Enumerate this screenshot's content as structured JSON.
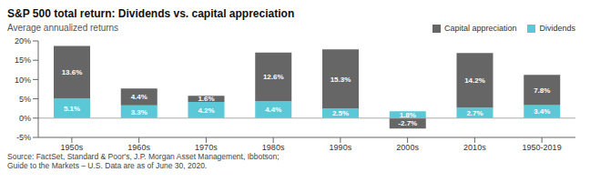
{
  "chart_data": {
    "type": "bar",
    "title": "S&P 500 total return: Dividends vs. capital appreciation",
    "subtitle": "Average annualized returns",
    "source": "Source: FactSet, Standard & Poor's, J.P. Morgan Asset Management, Ibbotson;\nGuide to the Markets – U.S. Data are as of June 30, 2020.",
    "categories": [
      "1950s",
      "1960s",
      "1970s",
      "1980s",
      "1990s",
      "2000s",
      "2010s",
      "1950-2019"
    ],
    "series": [
      {
        "name": "Dividends",
        "color": "#5bc8d8",
        "values": [
          5.1,
          3.3,
          4.2,
          4.4,
          2.5,
          1.8,
          2.7,
          3.4
        ],
        "value_labels": [
          "5.1%",
          "3.3%",
          "4.2%",
          "4.4%",
          "2.5%",
          "1.8%",
          "2.7%",
          "3.4%"
        ]
      },
      {
        "name": "Capital appreciation",
        "color": "#666666",
        "values": [
          13.6,
          4.4,
          1.6,
          12.6,
          15.3,
          -2.7,
          14.2,
          7.8
        ],
        "value_labels": [
          "13.6%",
          "4.4%",
          "1.6%",
          "12.6%",
          "15.3%",
          "-2.7%",
          "14.2%",
          "7.8%"
        ]
      }
    ],
    "stacked": true,
    "data_labels": true,
    "ylim": [
      -5,
      20
    ],
    "yticks": [
      {
        "value": -5,
        "label": "-5%"
      },
      {
        "value": 0,
        "label": "0%"
      },
      {
        "value": 5,
        "label": "5%"
      },
      {
        "value": 10,
        "label": "10%"
      },
      {
        "value": 15,
        "label": "15%"
      },
      {
        "value": 20,
        "label": "20%"
      }
    ],
    "grid": false,
    "legend": "upper right"
  }
}
